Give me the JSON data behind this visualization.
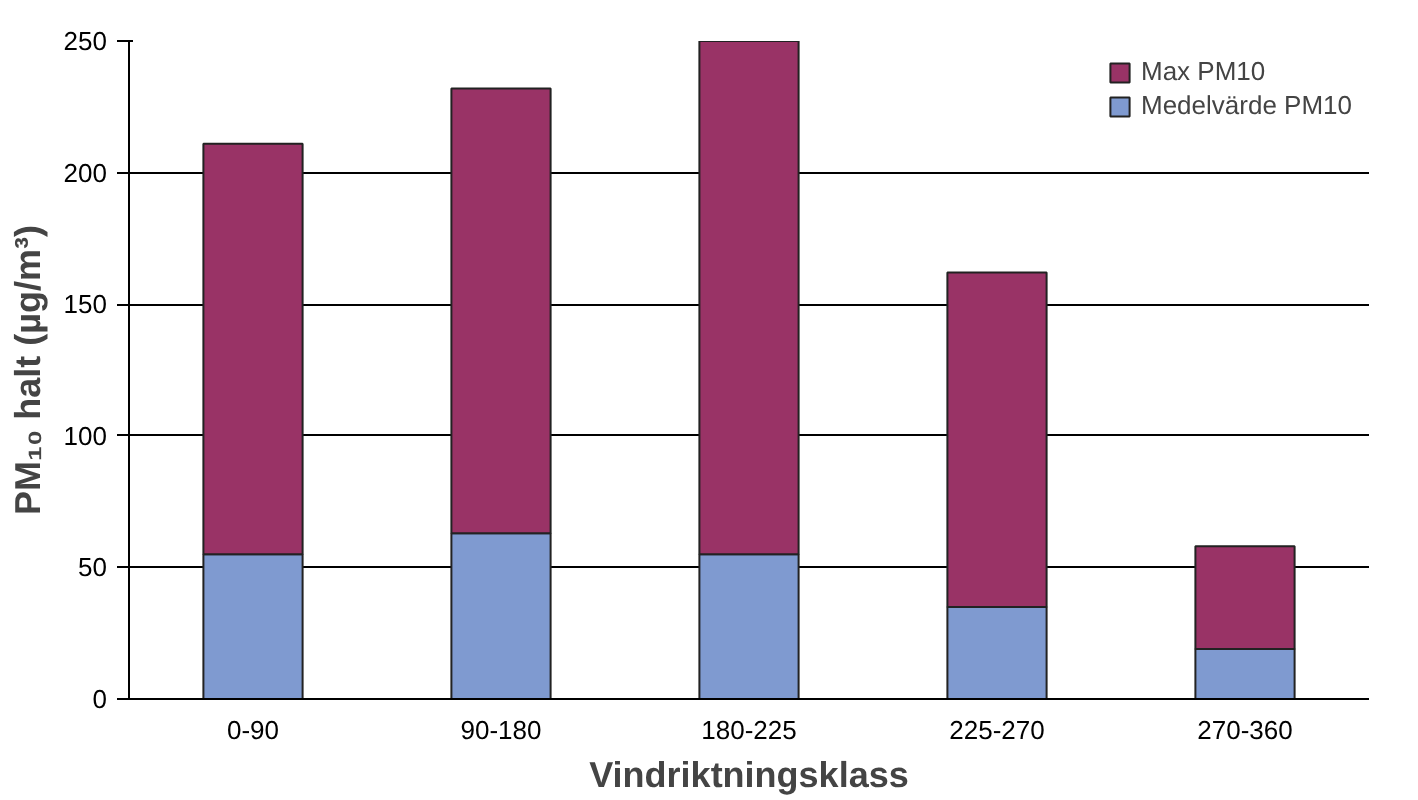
{
  "chart_data": {
    "type": "bar",
    "stacked": true,
    "xlabel": "Vindriktningsklass",
    "ylabel": "PM₁₀ halt (µg/m³)",
    "categories": [
      "0-90",
      "90-180",
      "180-225",
      "225-270",
      "270-360"
    ],
    "series": [
      {
        "name": "Medelvärde PM10",
        "color": "#7f9ad0",
        "values": [
          55,
          63,
          55,
          35,
          19
        ]
      },
      {
        "name": "Max PM10",
        "color": "#993366",
        "values": [
          156,
          169,
          195,
          127,
          39
        ]
      }
    ],
    "ylim": [
      0,
      250
    ],
    "yticks": [
      0,
      50,
      100,
      150,
      200,
      250
    ],
    "grid": "y",
    "legend": "top right"
  }
}
